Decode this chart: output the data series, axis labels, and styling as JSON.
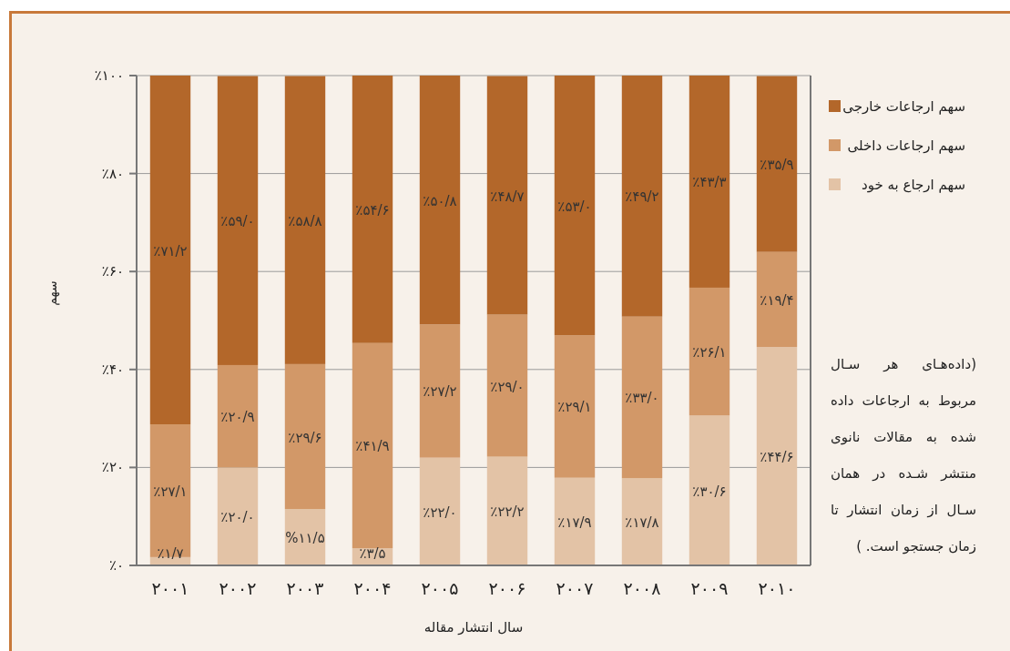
{
  "chart_data": {
    "type": "bar",
    "stacked": true,
    "xlabel": "سال انتشار مقاله",
    "ylabel": "سهم",
    "categories": [
      "۲۰۰۱",
      "۲۰۰۲",
      "۲۰۰۳",
      "۲۰۰۴",
      "۲۰۰۵",
      "۲۰۰۶",
      "۲۰۰۷",
      "۲۰۰۸",
      "۲۰۰۹",
      "۲۰۱۰"
    ],
    "series": [
      {
        "name": "سهم ارجاع به خود",
        "color": "#e3c3a6",
        "values": [
          1.7,
          20.0,
          11.5,
          3.5,
          22.0,
          22.2,
          17.9,
          17.8,
          30.6,
          44.6
        ],
        "value_labels": [
          "٪۱/۷",
          "٪۲۰/۰",
          "%۱۱/۵",
          "٪۳/۵",
          "٪۲۲/۰",
          "٪۲۲/۲",
          "٪۱۷/۹",
          "٪۱۷/۸",
          "٪۳۰/۶",
          "٪۴۴/۶"
        ]
      },
      {
        "name": "سهم ارجاعات داخلی",
        "color": "#d29868",
        "values": [
          27.1,
          20.9,
          29.6,
          41.9,
          27.2,
          29.0,
          29.1,
          33.0,
          26.1,
          19.4
        ],
        "value_labels": [
          "٪۲۷/۱",
          "٪۲۰/۹",
          "٪۲۹/۶",
          "٪۴۱/۹",
          "٪۲۷/۲",
          "٪۲۹/۰",
          "٪۲۹/۱",
          "٪۳۳/۰",
          "٪۲۶/۱",
          "٪۱۹/۴"
        ]
      },
      {
        "name": "سهم ارجاعات خارجی",
        "color": "#b3672a",
        "values": [
          71.2,
          59.0,
          58.8,
          54.6,
          50.8,
          48.7,
          53.0,
          49.2,
          43.3,
          35.9
        ],
        "value_labels": [
          "٪۷۱/۲",
          "٪۵۹/۰",
          "٪۵۸/۸",
          "٪۵۴/۶",
          "٪۵۰/۸",
          "٪۴۸/۷",
          "٪۵۳/۰",
          "٪۴۹/۲",
          "٪۴۳/۳",
          "٪۳۵/۹"
        ]
      }
    ],
    "ylim": [
      0,
      100
    ],
    "yticks": [
      {
        "value": 0,
        "label": "٪۰"
      },
      {
        "value": 20,
        "label": "٪۲۰"
      },
      {
        "value": 40,
        "label": "٪۴۰"
      },
      {
        "value": 60,
        "label": "٪۶۰"
      },
      {
        "value": 80,
        "label": "٪۸۰"
      },
      {
        "value": 100,
        "label": "٪۱۰۰"
      }
    ],
    "grid": "y",
    "legend": "right",
    "annotations": [
      "(داده‌هـای هر سـال مربوط به ارجاعات داده شده به مقالات نانوی منتشر شـده در همان سـال از زمان انتشار تا زمان جستجو است. )"
    ]
  }
}
